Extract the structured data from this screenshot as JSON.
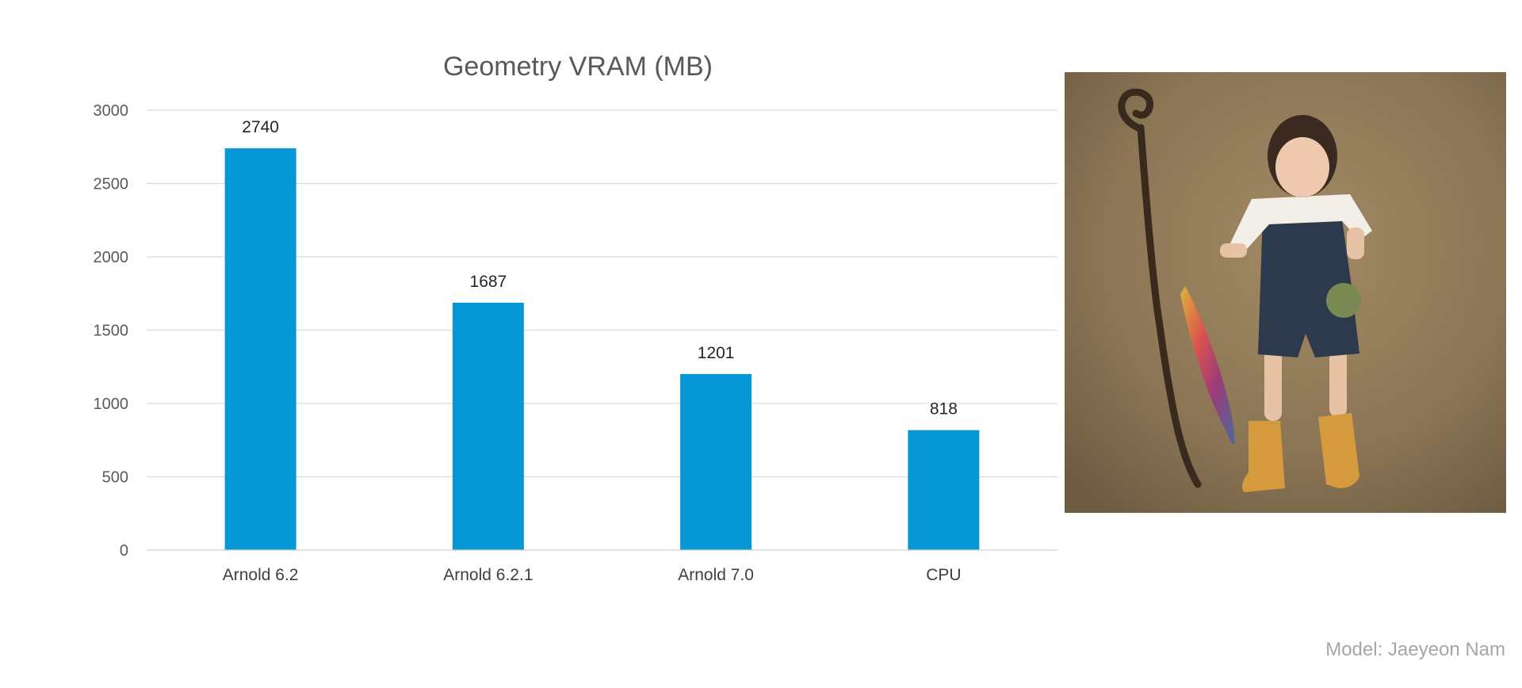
{
  "chart_data": {
    "type": "bar",
    "title": "Geometry VRAM (MB)",
    "categories": [
      "Arnold 6.2",
      "Arnold 6.2.1",
      "Arnold 7.0",
      "CPU"
    ],
    "values": [
      2740,
      1687,
      1201,
      818
    ],
    "data_labels": [
      "2740",
      "1687",
      "1201",
      "818"
    ],
    "xlabel": "",
    "ylabel": "",
    "ylim": [
      0,
      3000
    ],
    "yticks": [
      0,
      500,
      1000,
      1500,
      2000,
      2500,
      3000
    ],
    "grid": true,
    "legend": "none",
    "bar_color": "#0897d6"
  },
  "image": {
    "subject": "3d-character-render-girl-with-umbrella",
    "background_color": "#8c7656"
  },
  "credit": {
    "text": "Model: Jaeyeon Nam"
  }
}
